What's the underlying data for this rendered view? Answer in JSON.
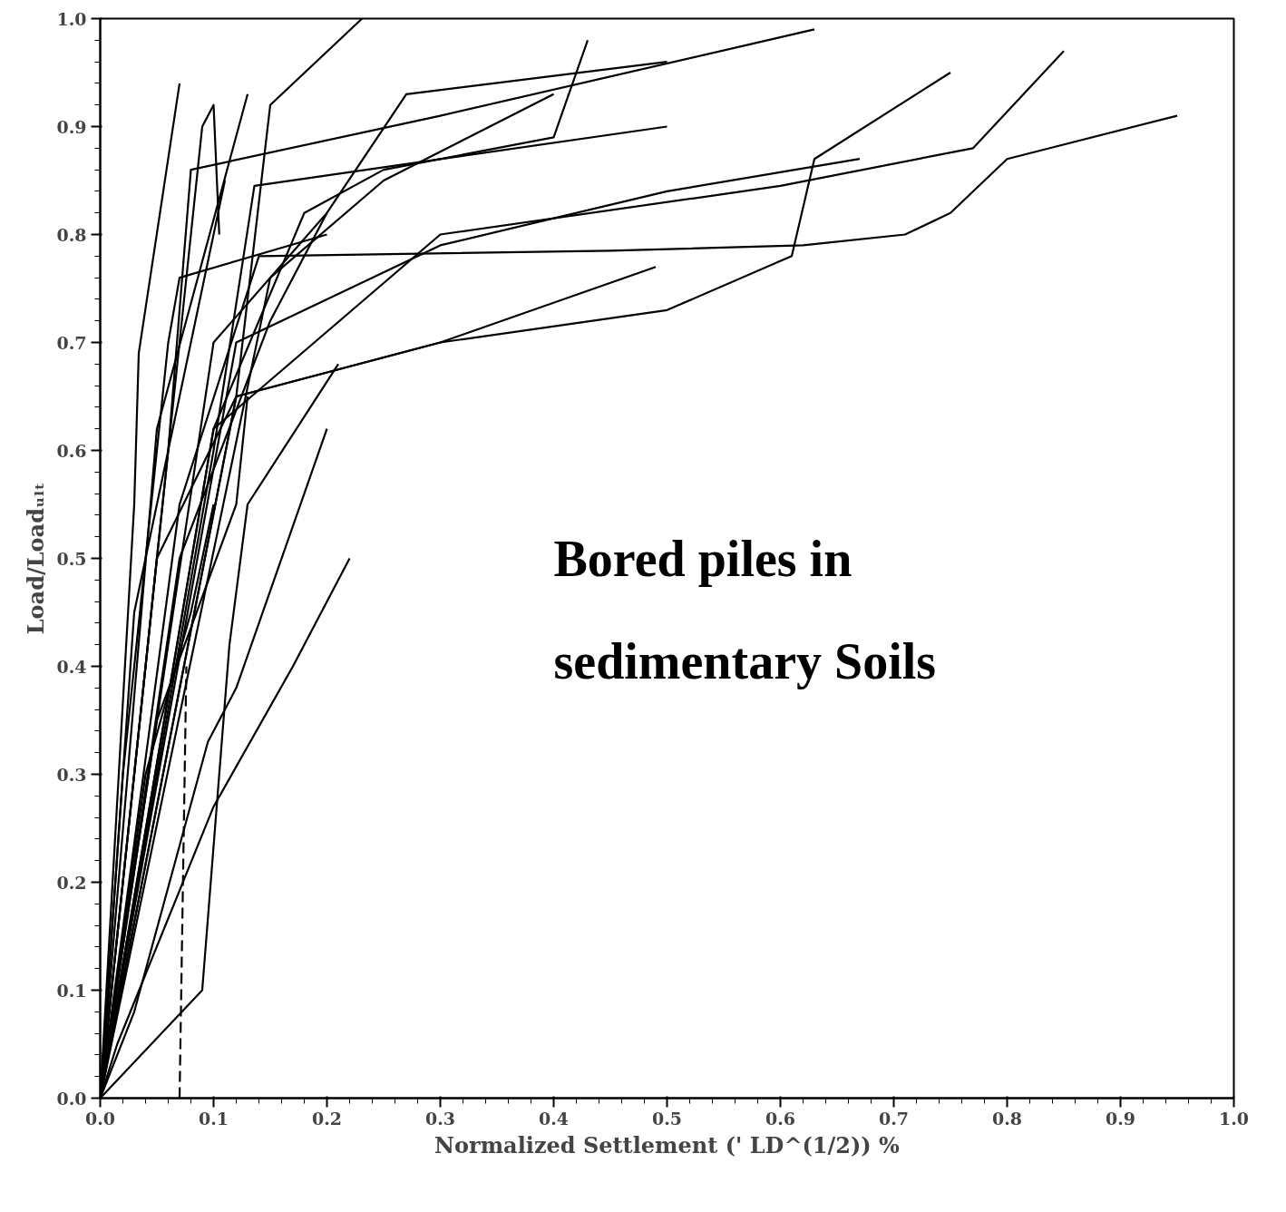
{
  "chart_data": {
    "type": "line",
    "xlabel": "Normalized Settlement (' LD^(1/2)) %",
    "ylabel": "Load/Loadᵤₗₜ",
    "annotations": [
      "Bored piles in\nsedimentary Soils"
    ],
    "xlim": [
      0,
      1
    ],
    "ylim": [
      0,
      1
    ],
    "xticks": [
      {
        "value": 0,
        "label": "0.0"
      },
      0.1,
      0.2,
      0.3,
      0.4,
      0.5,
      0.6,
      0.7,
      0.8,
      0.9,
      {
        "value": 1,
        "label": "1.0"
      }
    ],
    "yticks": [
      {
        "value": 0,
        "label": "0.0"
      },
      0.1,
      0.2,
      0.3,
      0.4,
      0.5,
      0.6,
      0.7,
      0.8,
      0.9,
      {
        "value": 1,
        "label": "1.0"
      }
    ],
    "grid": false,
    "marker": "none",
    "line_style": "solid",
    "series": [
      {
        "color": "#000000",
        "x": [
          0,
          0.03,
          0.034,
          0.07
        ],
        "values": [
          0,
          0.55,
          0.69,
          0.94
        ]
      },
      {
        "color": "#000000",
        "x": [
          0,
          0.12,
          0.15,
          0.231
        ],
        "values": [
          0,
          0.65,
          0.92,
          1.0
        ]
      },
      {
        "color": "#000000",
        "x": [
          0,
          0.1,
          0.18,
          0.25,
          0.4,
          0.43
        ],
        "values": [
          0,
          0.62,
          0.82,
          0.86,
          0.89,
          0.98
        ]
      },
      {
        "color": "#000000",
        "x": [
          0,
          0.07,
          0.14,
          0.45,
          0.62,
          0.71,
          0.75,
          0.8,
          0.95
        ],
        "values": [
          0,
          0.55,
          0.78,
          0.785,
          0.79,
          0.8,
          0.82,
          0.87,
          0.91
        ]
      },
      {
        "color": "#000000",
        "x": [
          0,
          0.1,
          0.3,
          0.6,
          0.77,
          0.85
        ],
        "values": [
          0,
          0.62,
          0.8,
          0.845,
          0.88,
          0.97
        ]
      },
      {
        "color": "#000000",
        "x": [
          0,
          0.12,
          0.3,
          0.5,
          0.61,
          0.63,
          0.75
        ],
        "values": [
          0,
          0.65,
          0.7,
          0.73,
          0.78,
          0.87,
          0.95
        ]
      },
      {
        "color": "#000000",
        "x": [
          0,
          0.06,
          0.08,
          0.3,
          0.63
        ],
        "values": [
          0,
          0.6,
          0.86,
          0.91,
          0.99
        ]
      },
      {
        "color": "#000000",
        "x": [
          0,
          0.1,
          0.2,
          0.27,
          0.5
        ],
        "values": [
          0,
          0.7,
          0.82,
          0.93,
          0.96
        ]
      },
      {
        "color": "#000000",
        "x": [
          0,
          0.05,
          0.12,
          0.3,
          0.49
        ],
        "values": [
          0,
          0.5,
          0.65,
          0.7,
          0.77
        ]
      },
      {
        "color": "#000000",
        "x": [
          0,
          0.12,
          0.3,
          0.5,
          0.67
        ],
        "values": [
          0,
          0.7,
          0.79,
          0.84,
          0.87
        ]
      },
      {
        "color": "#000000",
        "x": [
          0,
          0.1,
          0.136,
          0.5
        ],
        "values": [
          0,
          0.6,
          0.845,
          0.9
        ]
      },
      {
        "color": "#000000",
        "x": [
          0,
          0.15,
          0.25,
          0.4
        ],
        "values": [
          0,
          0.76,
          0.85,
          0.93
        ]
      },
      {
        "color": "#000000",
        "x": [
          0,
          0.015,
          0.1,
          0.17,
          0.22
        ],
        "values": [
          0,
          0.05,
          0.27,
          0.4,
          0.5
        ]
      },
      {
        "color": "#000000",
        "x": [
          0,
          0.09,
          0.114,
          0.13,
          0.21
        ],
        "values": [
          0,
          0.1,
          0.42,
          0.55,
          0.68
        ]
      },
      {
        "color": "#000000",
        "x": [
          0,
          0.03,
          0.095,
          0.12,
          0.2
        ],
        "values": [
          0,
          0.08,
          0.33,
          0.38,
          0.62
        ]
      },
      {
        "color": "#000000",
        "x": [
          0,
          0.06,
          0.09,
          0.1,
          0.105
        ],
        "values": [
          0,
          0.6,
          0.9,
          0.92,
          0.8
        ]
      },
      {
        "color": "#000000",
        "x": [
          0,
          0.05,
          0.13
        ],
        "values": [
          0,
          0.62,
          0.93
        ]
      },
      {
        "color": "#000000",
        "x": [
          0,
          0.03,
          0.09,
          0.11
        ],
        "values": [
          0,
          0.45,
          0.75,
          0.85
        ]
      },
      {
        "color": "#000000",
        "x": [
          0,
          0.07,
          0.15,
          0.2
        ],
        "values": [
          0,
          0.5,
          0.72,
          0.82
        ]
      },
      {
        "color": "#000000",
        "x": [
          0,
          0.05,
          0.12,
          0.13
        ],
        "values": [
          0,
          0.35,
          0.55,
          0.65
        ]
      },
      {
        "color": "#000000",
        "x": [
          0,
          0.02,
          0.06,
          0.07,
          0.2
        ],
        "values": [
          0,
          0.3,
          0.7,
          0.76,
          0.8
        ]
      },
      {
        "color": "#000000",
        "x": [
          0,
          0.04,
          0.08,
          0.1
        ],
        "values": [
          0,
          0.3,
          0.45,
          0.55
        ]
      },
      {
        "color": "#000000",
        "line_style": "dashed",
        "x": [
          0.07,
          0.076
        ],
        "values": [
          0,
          0.4
        ]
      }
    ]
  }
}
